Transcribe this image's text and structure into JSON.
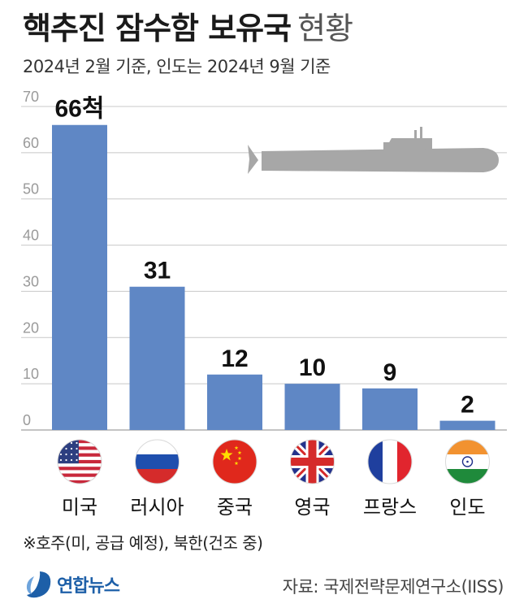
{
  "header": {
    "title": "핵추진 잠수함 보유국",
    "title_suffix": "현황",
    "subtitle": "2024년 2월 기준, 인도는 2024년 9월 기준"
  },
  "chart_data": {
    "type": "bar",
    "categories": [
      "미국",
      "러시아",
      "중국",
      "영국",
      "프랑스",
      "인도"
    ],
    "values": [
      66,
      31,
      12,
      10,
      9,
      2
    ],
    "data_labels": [
      "66척",
      "31",
      "12",
      "10",
      "9",
      "2"
    ],
    "ylim": [
      0,
      70
    ],
    "yticks": [
      0,
      10,
      20,
      30,
      40,
      50,
      60,
      70
    ],
    "grid": true,
    "bar_color": "#5f87c5",
    "flags": [
      "us-flag-icon",
      "russia-flag-icon",
      "china-flag-icon",
      "uk-flag-icon",
      "france-flag-icon",
      "india-flag-icon"
    ],
    "decoration": "submarine-icon"
  },
  "footer": {
    "note": "※호주(미, 공급 예정), 북한(건조 중)",
    "logo_text": "연합뉴스",
    "source": "자료: 국제전략문제연구소(IISS)"
  }
}
